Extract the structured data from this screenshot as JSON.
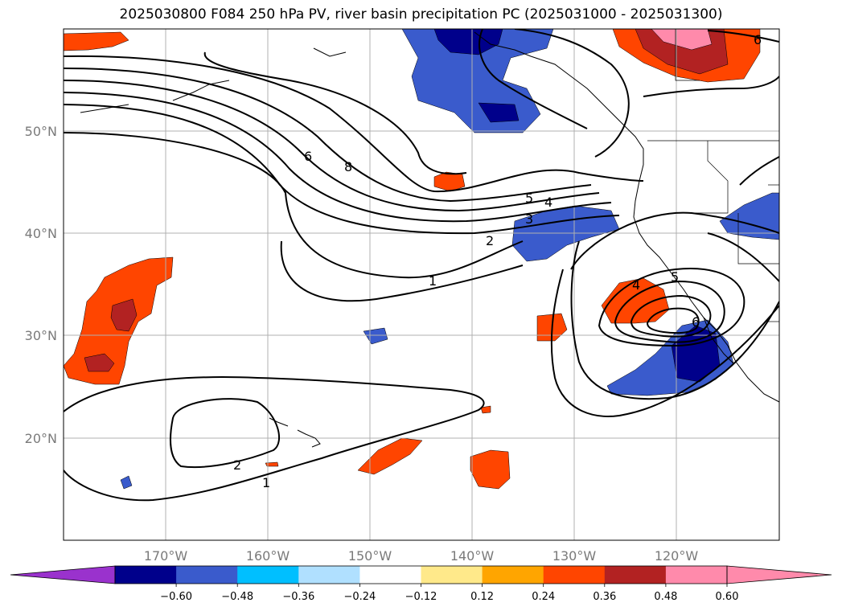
{
  "title": "2025030800 F084 250 hPa PV, river basin precipitation PC (2025031000 - 2025031300)",
  "lat_labels": [
    "50°N",
    "40°N",
    "30°N",
    "20°N"
  ],
  "lon_labels": [
    "170°W",
    "160°W",
    "150°W",
    "140°W",
    "130°W",
    "120°W"
  ],
  "colorbar": {
    "colors": [
      "#9a32cd",
      "#00008b",
      "#3a5bcc",
      "#00bfff",
      "#b0e0ff",
      "#ffffff",
      "#ffe98a",
      "#ffa500",
      "#ff4500",
      "#b22222",
      "#ff8aab",
      "#ff8aab"
    ],
    "tick_labels": [
      "−0.60",
      "−0.48",
      "−0.36",
      "−0.24",
      "−0.12",
      "0.12",
      "0.24",
      "0.36",
      "0.48",
      "0.60"
    ]
  },
  "contour_labels": [
    "6",
    "8",
    "5",
    "4",
    "3",
    "2",
    "1",
    "2",
    "1",
    "4",
    "5",
    "6",
    "6"
  ],
  "map_extent": {
    "lon_min": -180,
    "lon_max": -110,
    "lat_min": 10,
    "lat_max": 60
  },
  "colors": {
    "frame": "#000000",
    "grid": "#b0b0b0",
    "contour": "#000000"
  }
}
